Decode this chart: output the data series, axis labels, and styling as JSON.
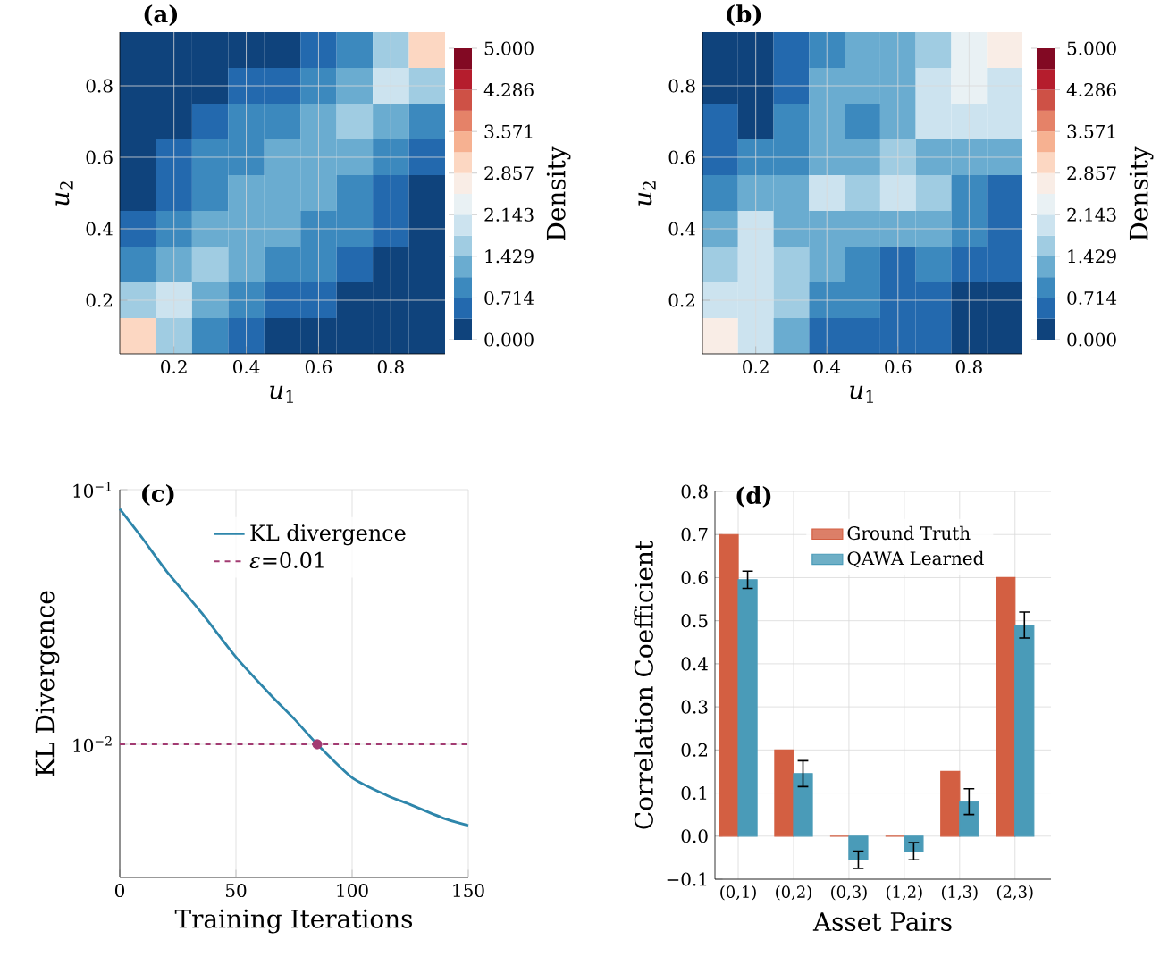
{
  "chart_data": [
    {
      "type": "heatmap",
      "title": "(a)",
      "xlabel": "*u*$_{1}$",
      "ylabel": "*u*$_{2}$",
      "clabel": "Density",
      "categories": [
        null,
        "0.2",
        null,
        "0.4",
        null,
        "0.6",
        null,
        "0.8",
        null
      ],
      "y_categories": [
        null,
        "0.8",
        null,
        "0.6",
        null,
        "0.4",
        null,
        "0.2",
        null
      ],
      "cells": [
        [
          0.02,
          0.05,
          0.1,
          0.2,
          0.35,
          0.6,
          1.0,
          1.6,
          3.0
        ],
        [
          0.05,
          0.12,
          0.25,
          0.45,
          0.7,
          1.0,
          1.3,
          1.9,
          1.6
        ],
        [
          0.1,
          0.25,
          0.5,
          0.75,
          1.0,
          1.2,
          1.5,
          1.3,
          1.0
        ],
        [
          0.2,
          0.45,
          0.75,
          1.0,
          1.2,
          1.3,
          1.2,
          1.0,
          0.6
        ],
        [
          0.35,
          0.7,
          1.0,
          1.2,
          1.3,
          1.2,
          1.0,
          0.7,
          0.35
        ],
        [
          0.6,
          1.0,
          1.2,
          1.3,
          1.2,
          1.0,
          0.75,
          0.45,
          0.2
        ],
        [
          1.0,
          1.3,
          1.5,
          1.2,
          1.0,
          0.75,
          0.5,
          0.25,
          0.1
        ],
        [
          1.6,
          1.9,
          1.3,
          1.0,
          0.7,
          0.45,
          0.25,
          0.12,
          0.05
        ],
        [
          3.0,
          1.6,
          1.0,
          0.6,
          0.35,
          0.2,
          0.1,
          0.05,
          0.02
        ]
      ],
      "clim": [
        0,
        5
      ],
      "cticks": [
        {
          "value": 0,
          "label": "0.000"
        },
        {
          "value": 0.714,
          "label": "0.714"
        },
        {
          "value": 1.429,
          "label": "1.429"
        },
        {
          "value": 2.143,
          "label": "2.143"
        },
        {
          "value": 2.857,
          "label": "2.857"
        },
        {
          "value": 3.571,
          "label": "3.571"
        },
        {
          "value": 4.286,
          "label": "4.286"
        },
        {
          "value": 5,
          "label": "5.000"
        }
      ],
      "grid": true
    },
    {
      "type": "heatmap",
      "title": "(b)",
      "xlabel": "*u*$_{1}$",
      "ylabel": "*u*$_{2}$",
      "clabel": "Density",
      "categories": [
        null,
        "0.2",
        null,
        "0.4",
        null,
        "0.6",
        null,
        "0.8",
        null
      ],
      "y_categories": [
        null,
        "0.8",
        null,
        "0.6",
        null,
        "0.4",
        null,
        "0.2",
        null
      ],
      "cells": [
        [
          0.2,
          0.2,
          0.6,
          0.9,
          1.2,
          1.3,
          1.6,
          2.2,
          2.8
        ],
        [
          0.2,
          0.2,
          0.7,
          1.1,
          1.2,
          1.4,
          1.9,
          2.2,
          1.8
        ],
        [
          0.6,
          0.3,
          0.8,
          1.2,
          1.0,
          1.3,
          1.8,
          1.9,
          2.0
        ],
        [
          0.7,
          0.8,
          1.0,
          1.3,
          1.4,
          1.5,
          1.2,
          1.3,
          1.1
        ],
        [
          0.9,
          1.1,
          1.2,
          2.0,
          1.5,
          2.0,
          1.5,
          1.0,
          0.7
        ],
        [
          1.2,
          1.8,
          1.4,
          1.3,
          1.4,
          1.2,
          1.1,
          0.8,
          0.5
        ],
        [
          1.6,
          2.0,
          1.6,
          1.1,
          1.0,
          0.6,
          0.9,
          0.7,
          0.4
        ],
        [
          1.9,
          2.0,
          1.5,
          1.0,
          0.8,
          0.6,
          0.6,
          0.3,
          0.2
        ],
        [
          2.8,
          2.0,
          1.3,
          0.7,
          0.4,
          0.5,
          0.5,
          0.3,
          0.2
        ]
      ],
      "clim": [
        0,
        5
      ],
      "cticks": [
        {
          "value": 0,
          "label": "0.000"
        },
        {
          "value": 0.714,
          "label": "0.714"
        },
        {
          "value": 1.429,
          "label": "1.429"
        },
        {
          "value": 2.143,
          "label": "2.143"
        },
        {
          "value": 2.857,
          "label": "2.857"
        },
        {
          "value": 3.571,
          "label": "3.571"
        },
        {
          "value": 4.286,
          "label": "4.286"
        },
        {
          "value": 5,
          "label": "5.000"
        }
      ],
      "grid": true
    },
    {
      "type": "line",
      "title": "(c)",
      "xlabel": "Training Iterations",
      "ylabel": "KL Divergence",
      "x": [
        0,
        10,
        20,
        35,
        50,
        65,
        75,
        85,
        100,
        115,
        125,
        140,
        150
      ],
      "series": [
        {
          "name": "KL divergence",
          "color": "#2e86ab",
          "values": [
            0.084,
            0.064,
            0.048,
            0.033,
            0.022,
            0.0156,
            0.0126,
            0.01,
            0.0074,
            0.0063,
            0.0058,
            0.0051,
            0.0048
          ]
        },
        {
          "type": "scatter",
          "color": "#a23b72",
          "x": [
            85
          ],
          "values": [
            0.01
          ]
        }
      ],
      "ref_lines": [
        {
          "axis": "y",
          "value": 0.01,
          "label": "*ε*=0.01",
          "color": "#a23b72",
          "line_style": "dashed"
        }
      ],
      "xlim": [
        0,
        150
      ],
      "ylim": [
        0.003,
        0.1
      ],
      "xticks": [
        0,
        50,
        100,
        150
      ],
      "yticks": [
        {
          "value": 0.1,
          "label": "10$^{−1}$"
        },
        {
          "value": 0.01,
          "label": "10$^{−2}$"
        }
      ],
      "log": "y",
      "grid": true,
      "legend": "top"
    },
    {
      "type": "bar",
      "title": "(d)",
      "xlabel": "Asset Pairs",
      "ylabel": "Correlation Coefficient",
      "categories": [
        "(0,1)",
        "(0,2)",
        "(0,3)",
        "(1,2)",
        "(1,3)",
        "(2,3)"
      ],
      "series": [
        {
          "name": "Ground Truth",
          "color": "#d35f42",
          "values": [
            0.7,
            0.2,
            0,
            0,
            0.15,
            0.6
          ]
        },
        {
          "name": "QAWA Learned",
          "color": "#4a9bb8",
          "values": [
            0.595,
            0.145,
            -0.055,
            -0.035,
            0.08,
            0.49
          ],
          "errors": [
            0.02,
            0.03,
            0.02,
            0.02,
            0.03,
            0.03
          ]
        }
      ],
      "ylim": [
        -0.1,
        0.8
      ],
      "yticks": [
        {
          "value": -0.1,
          "label": "−0.1"
        },
        {
          "value": 0,
          "label": "0.0"
        },
        {
          "value": 0.1,
          "label": "0.1"
        },
        {
          "value": 0.2,
          "label": "0.2"
        },
        {
          "value": 0.3,
          "label": "0.3"
        },
        {
          "value": 0.4,
          "label": "0.4"
        },
        {
          "value": 0.5,
          "label": "0.5"
        },
        {
          "value": 0.6,
          "label": "0.6"
        },
        {
          "value": 0.7,
          "label": "0.7"
        },
        {
          "value": 0.8,
          "label": "0.8"
        }
      ],
      "grid": true,
      "legend": "top"
    }
  ]
}
